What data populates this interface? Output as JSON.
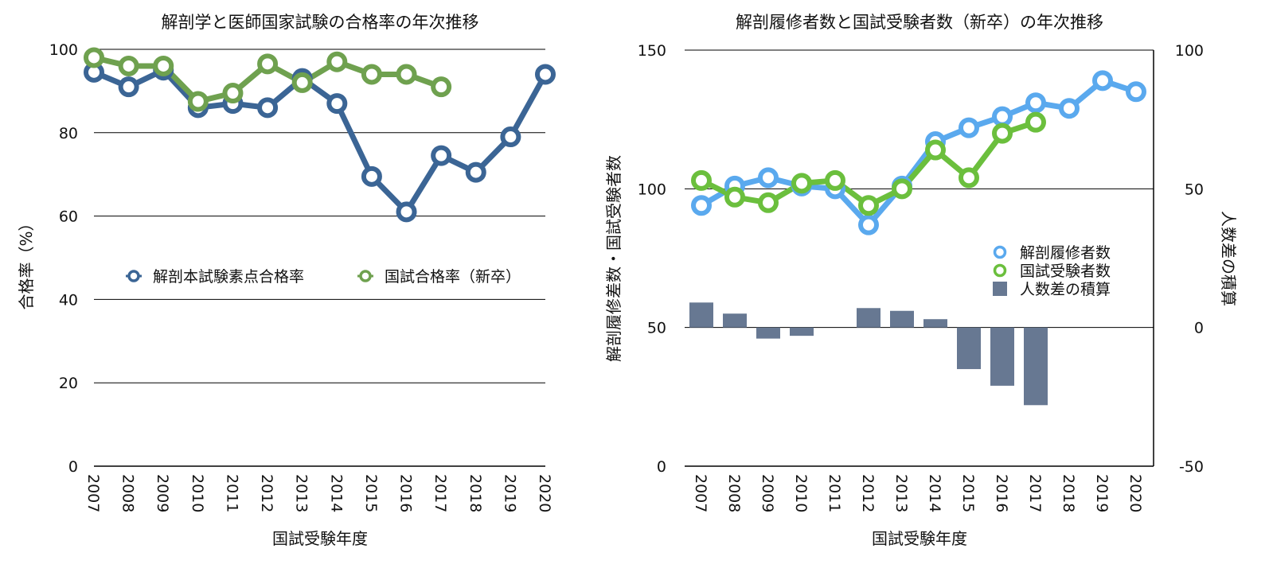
{
  "chart_data": [
    {
      "type": "line",
      "title": "解剖学と医師国家試験の合格率の年次推移",
      "xlabel": "国試受験年度",
      "ylabel": "合格率（%）",
      "categories": [
        "2007",
        "2008",
        "2009",
        "2010",
        "2011",
        "2012",
        "2013",
        "2014",
        "2015",
        "2016",
        "2017",
        "2018",
        "2019",
        "2020"
      ],
      "ylim": [
        0,
        100
      ],
      "yticks": [
        "0",
        "20",
        "40",
        "60",
        "80",
        "100"
      ],
      "grid": true,
      "legend_position": "center",
      "series": [
        {
          "name": "解剖本試験素点合格率",
          "color": "#3b6595",
          "values": [
            94.5,
            91,
            95,
            86,
            87,
            86,
            93,
            87,
            69.5,
            61,
            74.5,
            70.5,
            79,
            94
          ]
        },
        {
          "name": "国試合格率（新卒）",
          "color": "#6fa14f",
          "values": [
            98,
            96,
            96,
            87.5,
            89.5,
            96.5,
            92,
            97,
            94,
            94,
            91,
            null,
            null,
            null
          ]
        }
      ]
    },
    {
      "type": "line",
      "title": "解剖履修者数と国試受験者数（新卒）の年次推移",
      "xlabel": "国試受験年度",
      "ylabel": "解剖履修差数・国試受験者数",
      "y2label": "人数差の積算",
      "categories": [
        "2007",
        "2008",
        "2009",
        "2010",
        "2011",
        "2012",
        "2013",
        "2014",
        "2015",
        "2016",
        "2017",
        "2018",
        "2019",
        "2020"
      ],
      "ylim": [
        0,
        150
      ],
      "yticks": [
        "0",
        "50",
        "100",
        "150"
      ],
      "y2lim": [
        -50,
        100
      ],
      "y2ticks": [
        "-50",
        "0",
        "50",
        "100"
      ],
      "legend_position": "right",
      "series": [
        {
          "name": "解剖履修者数",
          "type": "line",
          "axis": "left",
          "color": "#5aa9ee",
          "values": [
            94,
            101,
            104,
            101,
            100,
            87,
            101,
            117,
            122,
            126,
            131,
            129,
            139,
            135
          ]
        },
        {
          "name": "国試受験者数",
          "type": "line",
          "axis": "left",
          "color": "#6bbf3d",
          "values": [
            103,
            97,
            95,
            102,
            103,
            94,
            100,
            114,
            104,
            120,
            124,
            null,
            null,
            null
          ]
        },
        {
          "name": "人数差の積算",
          "type": "bar",
          "axis": "right",
          "color": "#677892",
          "values": [
            9,
            5,
            -4,
            -3,
            0,
            7,
            6,
            3,
            -15,
            -21,
            -28,
            null,
            null,
            null
          ]
        }
      ]
    }
  ]
}
